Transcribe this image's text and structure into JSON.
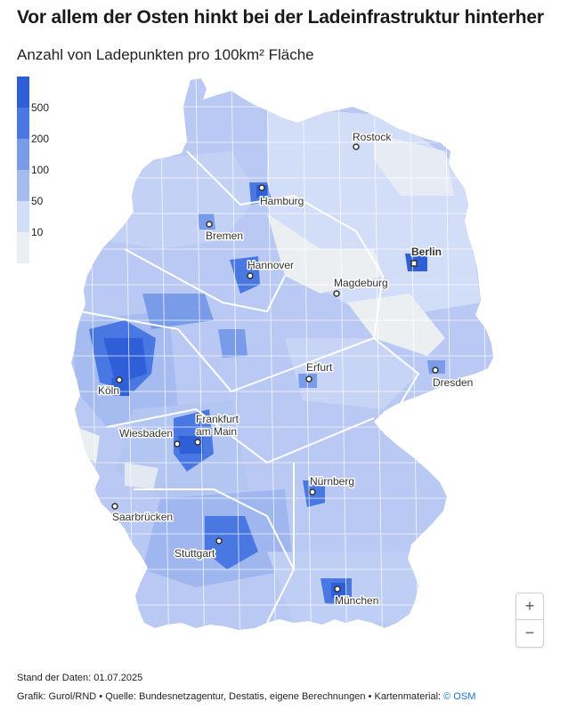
{
  "title": "Vor allem der Osten hinkt bei der Ladeinfrastruktur hinterher",
  "subtitle": "Anzahl von Ladepunkten pro 100km² Fläche",
  "legend": {
    "classes": [
      {
        "label": "500",
        "color": "#2e5fd6"
      },
      {
        "label": "200",
        "color": "#4a78e2"
      },
      {
        "label": "100",
        "color": "#7a9ce8"
      },
      {
        "label": "50",
        "color": "#a6bcf0"
      },
      {
        "label": "10",
        "color": "#d2ddf7"
      },
      {
        "label": "",
        "color": "#eceff1"
      }
    ]
  },
  "cities": [
    {
      "name": "Rostock"
    },
    {
      "name": "Hamburg"
    },
    {
      "name": "Bremen"
    },
    {
      "name": "Berlin"
    },
    {
      "name": "Hannover"
    },
    {
      "name": "Magdeburg"
    },
    {
      "name": "Erfurt"
    },
    {
      "name": "Dresden"
    },
    {
      "name": "Köln"
    },
    {
      "name": "Frankfurt"
    },
    {
      "name": "am Main"
    },
    {
      "name": "Wiesbaden"
    },
    {
      "name": "Nürnberg"
    },
    {
      "name": "Saarbrücken"
    },
    {
      "name": "Stuttgart"
    },
    {
      "name": "München"
    }
  ],
  "zoom": {
    "in": "+",
    "out": "−"
  },
  "footer": {
    "date": "Stand der Daten: 01.07.2025",
    "source": "Grafik: Gurol/RND • Quelle: Bundesnetzagentur, Destatis, eigene Berechnungen • Kartenmaterial:",
    "osm": "© OSM"
  }
}
